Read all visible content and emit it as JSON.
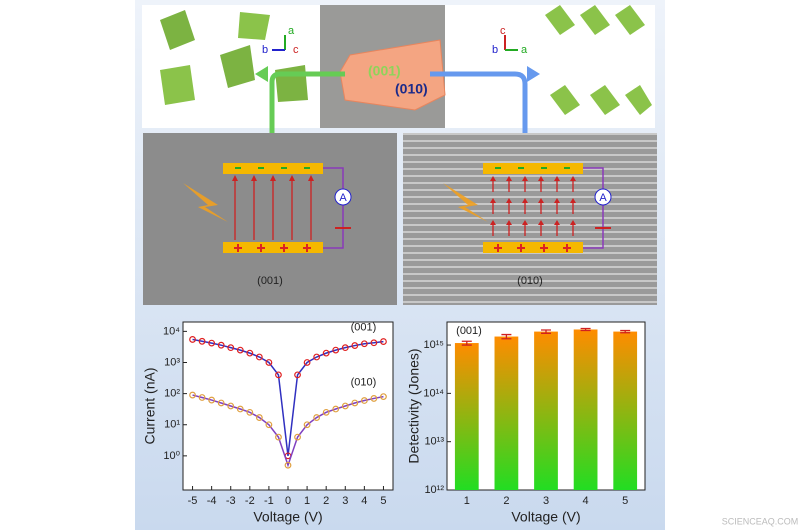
{
  "figure": {
    "crystal_faces": [
      "(001)",
      "(010)"
    ],
    "axes_left": [
      "a",
      "b",
      "c"
    ],
    "axes_right": [
      "c",
      "b",
      "a"
    ],
    "panel_labels": [
      "(001)",
      "(010)"
    ],
    "ammeter": "A",
    "watermark": "SCIENCEAQ.COM"
  },
  "chart_data": [
    {
      "type": "line",
      "ylabel": "Current (nA)",
      "xlabel": "Voltage (V)",
      "log_y": true,
      "x": [
        -5,
        -4.5,
        -4,
        -3.5,
        -3,
        -2.5,
        -2,
        -1.5,
        -1,
        -0.5,
        0,
        0.5,
        1,
        1.5,
        2,
        2.5,
        3,
        3.5,
        4,
        4.5,
        5
      ],
      "series": [
        {
          "name": "(001)",
          "color": "#e02020",
          "line_color": "#3030c0",
          "values": [
            5500,
            4800,
            4200,
            3600,
            3000,
            2500,
            2000,
            1500,
            1000,
            400,
            1,
            400,
            1000,
            1500,
            2000,
            2500,
            3000,
            3500,
            4000,
            4300,
            4700
          ]
        },
        {
          "name": "(010)",
          "color": "#e0a040",
          "line_color": "#8040c0",
          "values": [
            90,
            75,
            62,
            50,
            40,
            32,
            25,
            17,
            10,
            4,
            0.5,
            4,
            10,
            17,
            25,
            32,
            40,
            50,
            60,
            70,
            80
          ]
        }
      ],
      "xlim": [
        -5.5,
        5.5
      ],
      "xticks": [
        -5,
        -4,
        -3,
        -2,
        -1,
        0,
        1,
        2,
        3,
        4,
        5
      ],
      "ylim": [
        0.08,
        20000
      ],
      "yticks": [
        {
          "value": 1,
          "label": "10⁰"
        },
        {
          "value": 10,
          "label": "10¹"
        },
        {
          "value": 100,
          "label": "10²"
        },
        {
          "value": 1000,
          "label": "10³"
        },
        {
          "value": 10000,
          "label": "10⁴"
        }
      ]
    },
    {
      "type": "bar",
      "annotation": "(001)",
      "ylabel": "Detectivity (Jones)",
      "xlabel": "Voltage (V)",
      "log_y": true,
      "categories": [
        "1",
        "2",
        "3",
        "4",
        "5"
      ],
      "values": [
        1100000000000000.0,
        1500000000000000.0,
        1900000000000000.0,
        2100000000000000.0,
        1900000000000000.0
      ],
      "errors": [
        100000000000000.0,
        150000000000000.0,
        150000000000000.0,
        100000000000000.0,
        100000000000000.0
      ],
      "color_top": "#ff8c00",
      "color_bottom": "#22dd22",
      "error_color": "#d02020",
      "ylim": [
        1000000000000.0,
        3000000000000000.0
      ],
      "yticks": [
        {
          "value": 1000000000000.0,
          "label": "10¹²"
        },
        {
          "value": 10000000000000.0,
          "label": "10¹³"
        },
        {
          "value": 100000000000000.0,
          "label": "10¹⁴"
        },
        {
          "value": 1000000000000000.0,
          "label": "10¹⁵"
        }
      ]
    }
  ]
}
